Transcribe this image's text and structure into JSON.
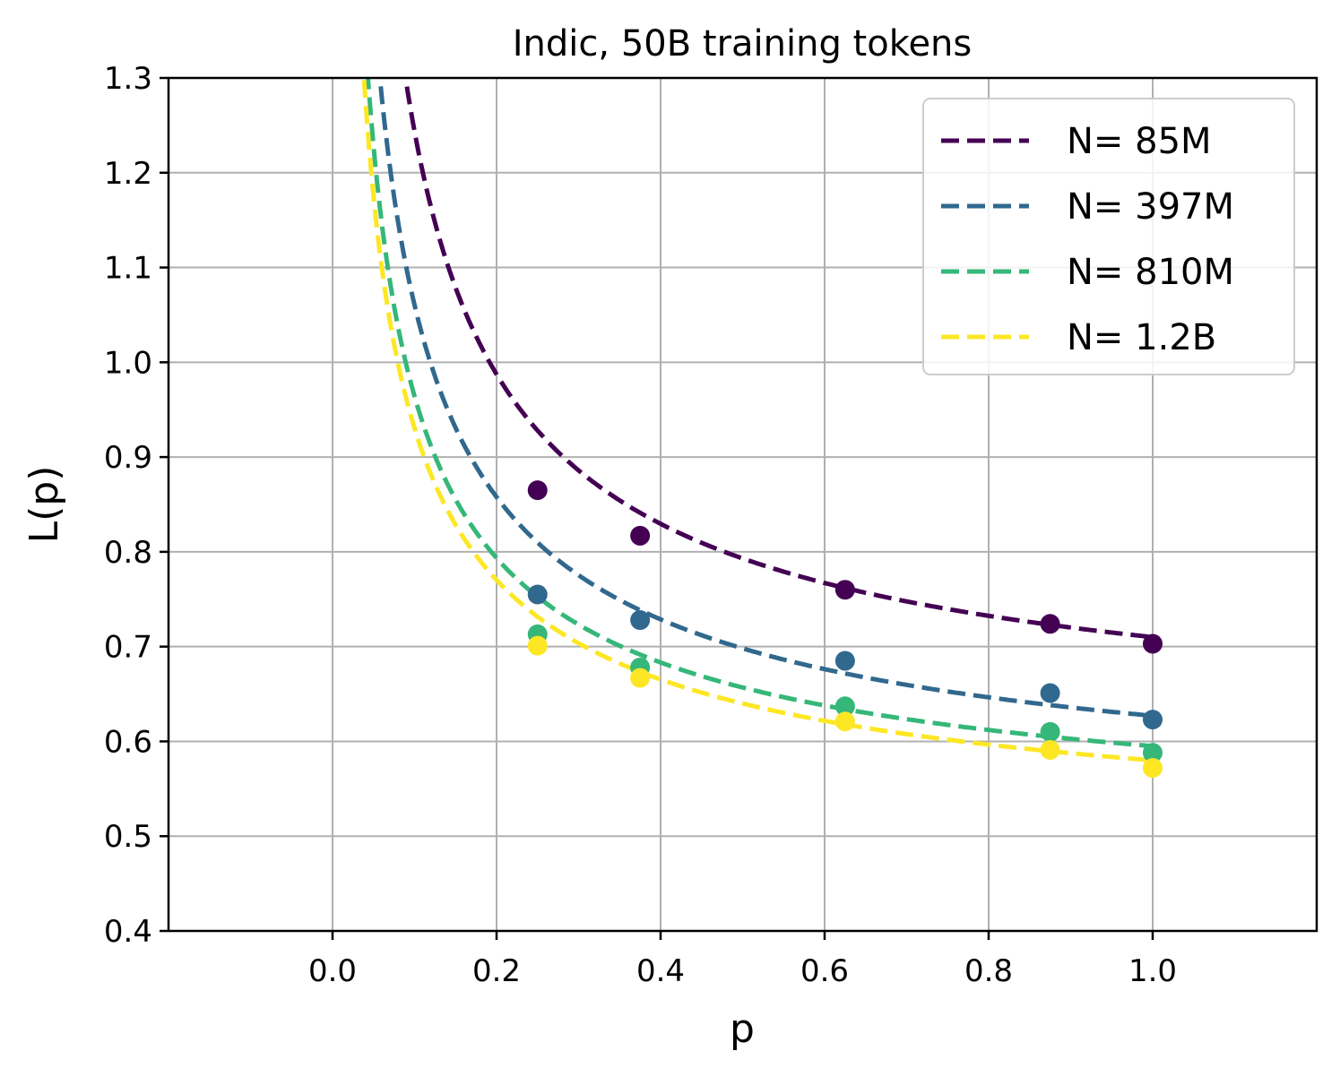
{
  "chart_data": {
    "type": "line",
    "title": "Indic, 50B training tokens",
    "xlabel": "p",
    "ylabel": "L(p)",
    "xlim": [
      -0.2,
      1.2
    ],
    "ylim": [
      0.4,
      1.3
    ],
    "xticks": [
      "0.0",
      "0.2",
      "0.4",
      "0.6",
      "0.8",
      "1.0"
    ],
    "yticks": [
      "0.4",
      "0.5",
      "0.6",
      "0.7",
      "0.8",
      "0.9",
      "1.0",
      "1.1",
      "1.2",
      "1.3"
    ],
    "grid": true,
    "legend_position": "top-right",
    "series": [
      {
        "name": "N= 85M",
        "color": "#440154",
        "points": [
          [
            0.25,
            0.865
          ],
          [
            0.375,
            0.817
          ],
          [
            0.625,
            0.76
          ],
          [
            0.875,
            0.724
          ],
          [
            1.0,
            0.703
          ]
        ],
        "fit": {
          "a": 0.71,
          "b": 0.133,
          "c": 0.7
        }
      },
      {
        "name": "N= 397M",
        "color": "#31688e",
        "points": [
          [
            0.25,
            0.755
          ],
          [
            0.375,
            0.728
          ],
          [
            0.625,
            0.685
          ],
          [
            0.875,
            0.651
          ],
          [
            1.0,
            0.623
          ]
        ],
        "fit": {
          "a": 0.627,
          "b": 0.125,
          "c": 0.65
        }
      },
      {
        "name": "N= 810M",
        "color": "#35b779",
        "points": [
          [
            0.25,
            0.713
          ],
          [
            0.375,
            0.678
          ],
          [
            0.625,
            0.637
          ],
          [
            0.875,
            0.61
          ],
          [
            1.0,
            0.588
          ]
        ],
        "fit": {
          "a": 0.595,
          "b": 0.113,
          "c": 0.63
        }
      },
      {
        "name": "N= 1.2B",
        "color": "#fde725",
        "points": [
          [
            0.25,
            0.701
          ],
          [
            0.375,
            0.667
          ],
          [
            0.625,
            0.621
          ],
          [
            0.875,
            0.591
          ],
          [
            1.0,
            0.572
          ]
        ],
        "fit": {
          "a": 0.58,
          "b": 0.114,
          "c": 0.61
        }
      }
    ]
  }
}
